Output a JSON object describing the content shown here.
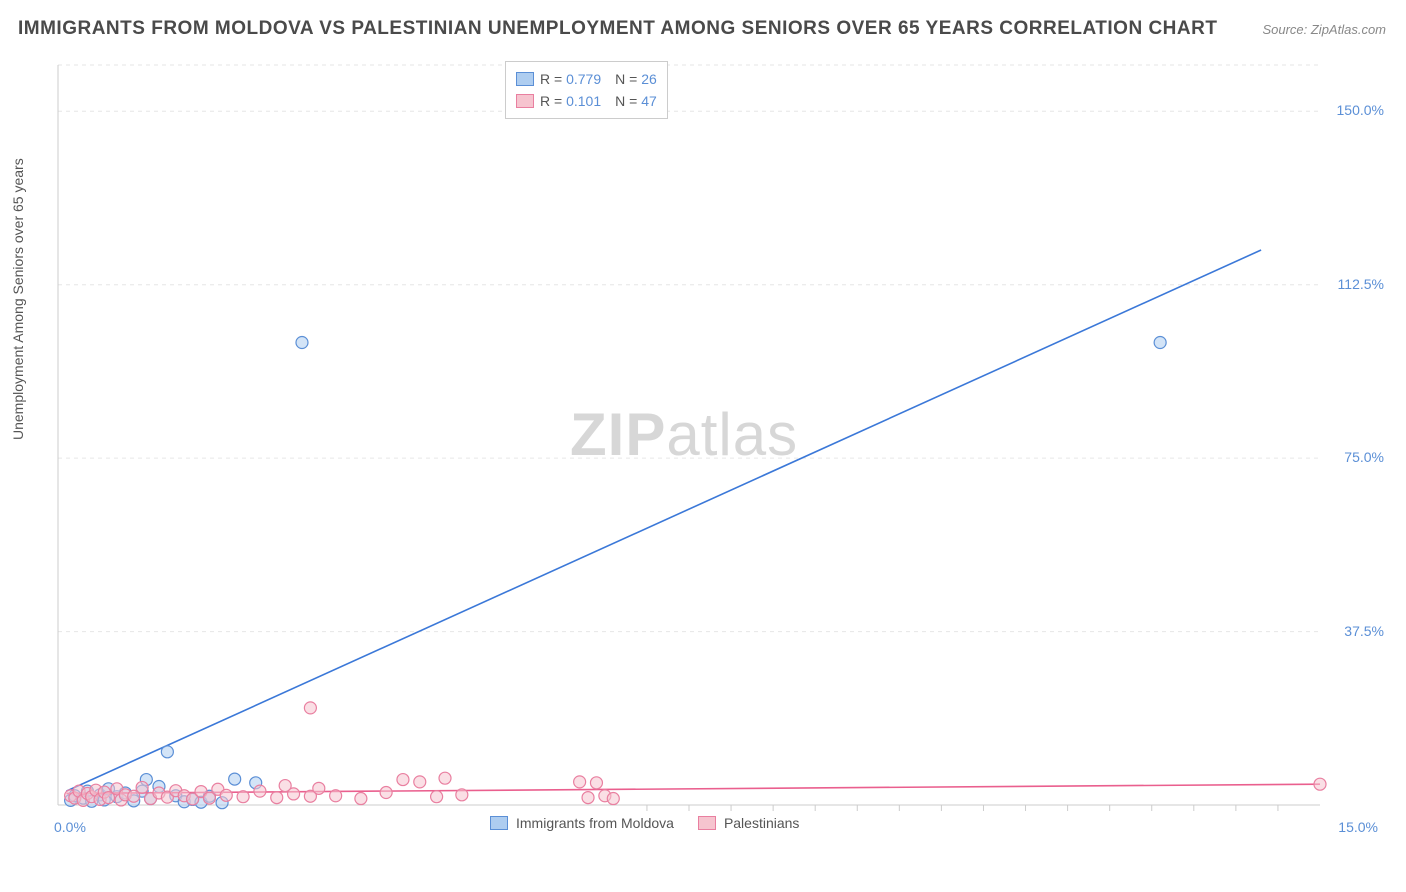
{
  "title": "IMMIGRANTS FROM MOLDOVA VS PALESTINIAN UNEMPLOYMENT AMONG SENIORS OVER 65 YEARS CORRELATION CHART",
  "source": "Source: ZipAtlas.com",
  "ylabel": "Unemployment Among Seniors over 65 years",
  "watermark_bold": "ZIP",
  "watermark_rest": "atlas",
  "chart": {
    "type": "scatter",
    "background_color": "#ffffff",
    "grid_color": "#e6e6e6",
    "axis_color": "#cccccc",
    "xlim": [
      0,
      15
    ],
    "ylim": [
      0,
      160
    ],
    "x_ticks": [
      0,
      15
    ],
    "x_tick_labels": [
      "0.0%",
      "15.0%"
    ],
    "y_ticks": [
      37.5,
      75.0,
      112.5,
      150.0
    ],
    "y_tick_labels": [
      "37.5%",
      "75.0%",
      "112.5%",
      "150.0%"
    ],
    "x_minor_ticks": [
      7.0,
      7.5,
      8.0,
      8.5,
      9.0,
      9.5,
      10.0,
      10.5,
      11.0,
      11.5,
      12.0,
      12.5,
      13.0,
      13.5,
      14.0,
      14.5
    ],
    "tick_label_color": "#5b8fd6",
    "marker_radius": 6,
    "marker_stroke_width": 1.2,
    "line_width": 1.6,
    "series": [
      {
        "name": "Immigrants from Moldova",
        "legend_label": "Immigrants from Moldova",
        "fill": "#aecdf0",
        "stroke": "#5b8fd6",
        "line_color": "#3b78d8",
        "r_value": "0.779",
        "n_value": "26",
        "trend": {
          "x1": 0.1,
          "y1": 3,
          "x2": 14.3,
          "y2": 120
        },
        "points": [
          {
            "x": 0.15,
            "y": 1
          },
          {
            "x": 0.2,
            "y": 2
          },
          {
            "x": 0.3,
            "y": 1.5
          },
          {
            "x": 0.35,
            "y": 3
          },
          {
            "x": 0.4,
            "y": 0.8
          },
          {
            "x": 0.5,
            "y": 2.2
          },
          {
            "x": 0.55,
            "y": 1.1
          },
          {
            "x": 0.6,
            "y": 3.5
          },
          {
            "x": 0.7,
            "y": 1.8
          },
          {
            "x": 0.8,
            "y": 2.6
          },
          {
            "x": 0.9,
            "y": 0.9
          },
          {
            "x": 1.0,
            "y": 3.0
          },
          {
            "x": 1.1,
            "y": 1.4
          },
          {
            "x": 1.2,
            "y": 4.0
          },
          {
            "x": 1.3,
            "y": 11.5
          },
          {
            "x": 1.4,
            "y": 2.0
          },
          {
            "x": 1.5,
            "y": 0.7
          },
          {
            "x": 1.6,
            "y": 1.2
          },
          {
            "x": 1.7,
            "y": 0.6
          },
          {
            "x": 1.8,
            "y": 1.9
          },
          {
            "x": 1.95,
            "y": 0.5
          },
          {
            "x": 2.1,
            "y": 5.6
          },
          {
            "x": 2.35,
            "y": 4.8
          },
          {
            "x": 2.9,
            "y": 100
          },
          {
            "x": 13.1,
            "y": 100
          },
          {
            "x": 1.05,
            "y": 5.5
          }
        ]
      },
      {
        "name": "Palestinians",
        "legend_label": "Palestinians",
        "fill": "#f6c4cf",
        "stroke": "#e97fa0",
        "line_color": "#ea5f8e",
        "r_value": "0.101",
        "n_value": "47",
        "trend": {
          "x1": 0.1,
          "y1": 2.5,
          "x2": 15.0,
          "y2": 4.5
        },
        "points": [
          {
            "x": 0.15,
            "y": 2.0
          },
          {
            "x": 0.2,
            "y": 1.5
          },
          {
            "x": 0.25,
            "y": 3.0
          },
          {
            "x": 0.3,
            "y": 1.0
          },
          {
            "x": 0.35,
            "y": 2.5
          },
          {
            "x": 0.4,
            "y": 1.8
          },
          {
            "x": 0.45,
            "y": 3.2
          },
          {
            "x": 0.5,
            "y": 1.2
          },
          {
            "x": 0.55,
            "y": 2.8
          },
          {
            "x": 0.6,
            "y": 1.6
          },
          {
            "x": 0.7,
            "y": 3.5
          },
          {
            "x": 0.75,
            "y": 1.1
          },
          {
            "x": 0.8,
            "y": 2.2
          },
          {
            "x": 0.9,
            "y": 1.9
          },
          {
            "x": 1.0,
            "y": 3.8
          },
          {
            "x": 1.1,
            "y": 1.4
          },
          {
            "x": 1.2,
            "y": 2.6
          },
          {
            "x": 1.3,
            "y": 1.7
          },
          {
            "x": 1.4,
            "y": 3.1
          },
          {
            "x": 1.5,
            "y": 2.0
          },
          {
            "x": 1.6,
            "y": 1.3
          },
          {
            "x": 1.7,
            "y": 2.9
          },
          {
            "x": 1.8,
            "y": 1.5
          },
          {
            "x": 1.9,
            "y": 3.4
          },
          {
            "x": 2.0,
            "y": 2.1
          },
          {
            "x": 2.2,
            "y": 1.8
          },
          {
            "x": 2.4,
            "y": 3.0
          },
          {
            "x": 2.6,
            "y": 1.6
          },
          {
            "x": 2.7,
            "y": 4.2
          },
          {
            "x": 2.8,
            "y": 2.4
          },
          {
            "x": 3.0,
            "y": 21
          },
          {
            "x": 3.0,
            "y": 1.9
          },
          {
            "x": 3.1,
            "y": 3.6
          },
          {
            "x": 3.3,
            "y": 2.0
          },
          {
            "x": 3.6,
            "y": 1.4
          },
          {
            "x": 3.9,
            "y": 2.7
          },
          {
            "x": 4.1,
            "y": 5.5
          },
          {
            "x": 4.3,
            "y": 5.0
          },
          {
            "x": 4.5,
            "y": 1.8
          },
          {
            "x": 4.6,
            "y": 5.8
          },
          {
            "x": 4.8,
            "y": 2.2
          },
          {
            "x": 6.2,
            "y": 5.0
          },
          {
            "x": 6.3,
            "y": 1.6
          },
          {
            "x": 6.4,
            "y": 4.8
          },
          {
            "x": 6.5,
            "y": 2.0
          },
          {
            "x": 6.6,
            "y": 1.4
          },
          {
            "x": 15.0,
            "y": 4.5
          }
        ]
      }
    ]
  },
  "legend_stats": {
    "r_label": "R =",
    "n_label": "N ="
  },
  "legend_bottom_labels": [
    "Immigrants from Moldova",
    "Palestinians"
  ]
}
